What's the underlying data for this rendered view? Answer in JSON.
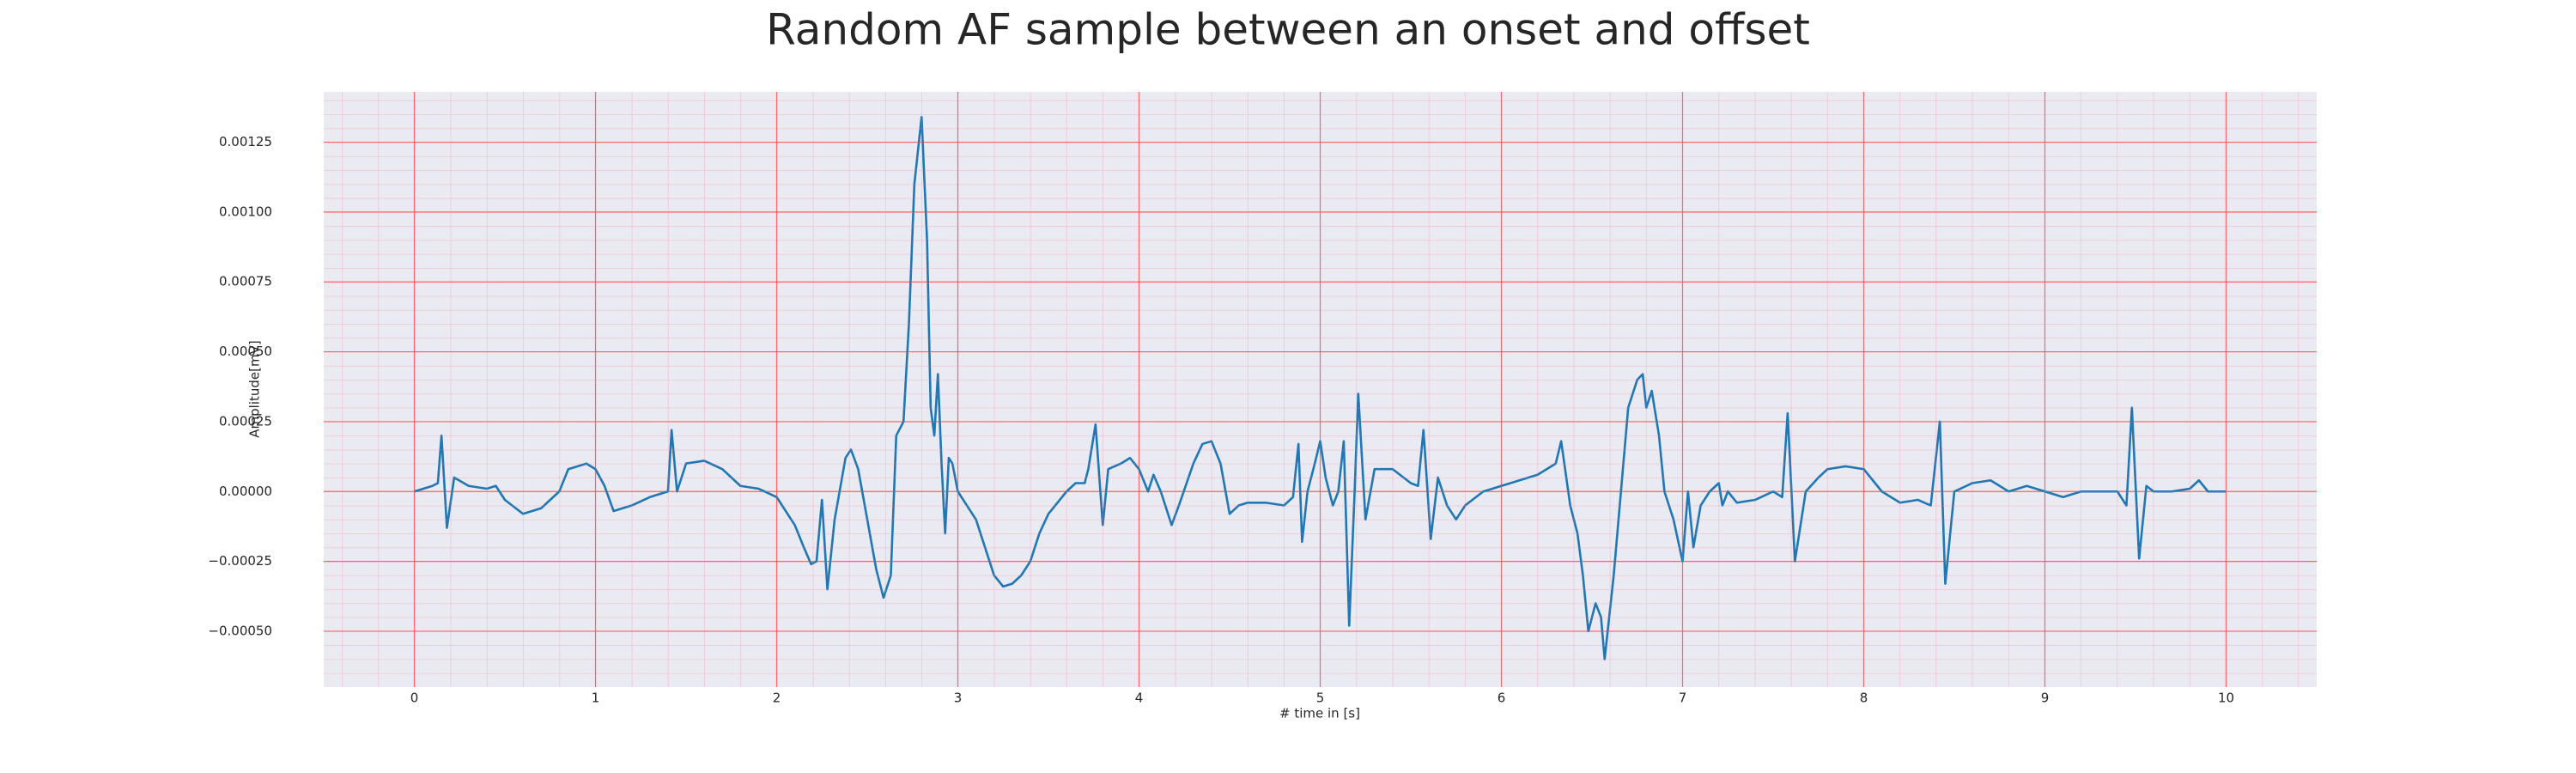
{
  "chart_data": {
    "type": "line",
    "title": "Random AF sample between an onset and offset",
    "xlabel": "# time in [s]",
    "ylabel": "Amplitude[mV]",
    "color": "#1f77b4",
    "grid": true,
    "xlim": [
      -0.5,
      10.5
    ],
    "ylim": [
      -0.0007,
      0.00143
    ],
    "xticks": [
      0,
      1,
      2,
      3,
      4,
      5,
      6,
      7,
      8,
      9,
      10
    ],
    "yticks": [
      {
        "value": -0.0005,
        "label": "−0.00050"
      },
      {
        "value": -0.00025,
        "label": "−0.00025"
      },
      {
        "value": 0,
        "label": "0.00000"
      },
      0.00025,
      {
        "value": 0.0005,
        "label": "0.00050"
      },
      0.00075,
      {
        "value": 0.001,
        "label": "0.00100"
      },
      0.00125
    ],
    "x": [
      0,
      0.05,
      0.1,
      0.13,
      0.15,
      0.18,
      0.22,
      0.3,
      0.4,
      0.45,
      0.5,
      0.6,
      0.7,
      0.8,
      0.85,
      0.95,
      1.0,
      1.05,
      1.1,
      1.2,
      1.3,
      1.4,
      1.42,
      1.45,
      1.5,
      1.6,
      1.7,
      1.8,
      1.9,
      2.0,
      2.1,
      2.15,
      2.19,
      2.22,
      2.25,
      2.28,
      2.32,
      2.38,
      2.41,
      2.45,
      2.5,
      2.55,
      2.59,
      2.63,
      2.66,
      2.7,
      2.73,
      2.76,
      2.8,
      2.83,
      2.85,
      2.87,
      2.89,
      2.91,
      2.93,
      2.95,
      2.97,
      3.0,
      3.05,
      3.1,
      3.15,
      3.2,
      3.25,
      3.3,
      3.35,
      3.4,
      3.45,
      3.5,
      3.6,
      3.65,
      3.7,
      3.72,
      3.76,
      3.8,
      3.83,
      3.9,
      3.95,
      4.0,
      4.05,
      4.08,
      4.12,
      4.18,
      4.22,
      4.3,
      4.35,
      4.4,
      4.45,
      4.5,
      4.55,
      4.6,
      4.7,
      4.8,
      4.85,
      4.88,
      4.9,
      4.93,
      4.97,
      5.0,
      5.03,
      5.07,
      5.1,
      5.13,
      5.16,
      5.19,
      5.21,
      5.25,
      5.3,
      5.4,
      5.5,
      5.54,
      5.57,
      5.61,
      5.65,
      5.7,
      5.75,
      5.8,
      5.9,
      6.0,
      6.1,
      6.2,
      6.3,
      6.33,
      6.38,
      6.42,
      6.45,
      6.48,
      6.52,
      6.55,
      6.57,
      6.62,
      6.66,
      6.7,
      6.75,
      6.78,
      6.8,
      6.83,
      6.87,
      6.9,
      6.95,
      7.0,
      7.03,
      7.06,
      7.1,
      7.15,
      7.2,
      7.22,
      7.25,
      7.3,
      7.4,
      7.5,
      7.55,
      7.58,
      7.62,
      7.68,
      7.75,
      7.8,
      7.9,
      8.0,
      8.1,
      8.2,
      8.3,
      8.37,
      8.42,
      8.45,
      8.5,
      8.6,
      8.7,
      8.8,
      8.9,
      9.0,
      9.1,
      9.2,
      9.3,
      9.4,
      9.45,
      9.48,
      9.52,
      9.56,
      9.6,
      9.7,
      9.8,
      9.85,
      9.9,
      10.0
    ],
    "values": [
      0,
      1e-05,
      2e-05,
      3e-05,
      0.0002,
      -0.00013,
      5e-05,
      2e-05,
      1e-05,
      2e-05,
      -3e-05,
      -8e-05,
      -6e-05,
      0,
      8e-05,
      0.0001,
      8e-05,
      2e-05,
      -7e-05,
      -5e-05,
      -2e-05,
      0,
      0.00022,
      0,
      0.0001,
      0.00011,
      8e-05,
      2e-05,
      1e-05,
      -2e-05,
      -0.00012,
      -0.0002,
      -0.00026,
      -0.00025,
      -3e-05,
      -0.00035,
      -0.0001,
      0.00012,
      0.00015,
      8e-05,
      -0.0001,
      -0.00028,
      -0.00038,
      -0.0003,
      0.0002,
      0.00025,
      0.0006,
      0.0011,
      0.00134,
      0.0009,
      0.0003,
      0.0002,
      0.00042,
      0.0001,
      -0.00015,
      0.00012,
      0.0001,
      0,
      -5e-05,
      -0.0001,
      -0.0002,
      -0.0003,
      -0.00034,
      -0.00033,
      -0.0003,
      -0.00025,
      -0.00015,
      -8e-05,
      0,
      3e-05,
      3e-05,
      8e-05,
      0.00024,
      -0.00012,
      8e-05,
      0.0001,
      0.00012,
      8e-05,
      0,
      6e-05,
      0,
      -0.00012,
      -5e-05,
      0.0001,
      0.00017,
      0.00018,
      0.0001,
      -8e-05,
      -5e-05,
      -4e-05,
      -4e-05,
      -5e-05,
      -2e-05,
      0.00017,
      -0.00018,
      0,
      0.0001,
      0.00018,
      5e-05,
      -5e-05,
      0,
      0.00018,
      -0.00048,
      0,
      0.00035,
      -0.0001,
      8e-05,
      8e-05,
      3e-05,
      2e-05,
      0.00022,
      -0.00017,
      5e-05,
      -5e-05,
      -0.0001,
      -5e-05,
      0,
      2e-05,
      4e-05,
      6e-05,
      0.0001,
      0.00018,
      -5e-05,
      -0.00015,
      -0.0003,
      -0.0005,
      -0.0004,
      -0.00045,
      -0.0006,
      -0.0003,
      0,
      0.0003,
      0.0004,
      0.00042,
      0.0003,
      0.00036,
      0.0002,
      0,
      -0.0001,
      -0.00025,
      0,
      -0.0002,
      -5e-05,
      0,
      3e-05,
      -5e-05,
      0,
      -4e-05,
      -3e-05,
      0,
      -2e-05,
      0.00028,
      -0.00025,
      0,
      5e-05,
      8e-05,
      9e-05,
      8e-05,
      0,
      -4e-05,
      -3e-05,
      -5e-05,
      0.00025,
      -0.00033,
      0,
      3e-05,
      4e-05,
      0,
      2e-05,
      0,
      -2e-05,
      0,
      0,
      0,
      -5e-05,
      0.0003,
      -0.00024,
      2e-05,
      0,
      0,
      1e-05,
      4e-05,
      0,
      0
    ]
  }
}
